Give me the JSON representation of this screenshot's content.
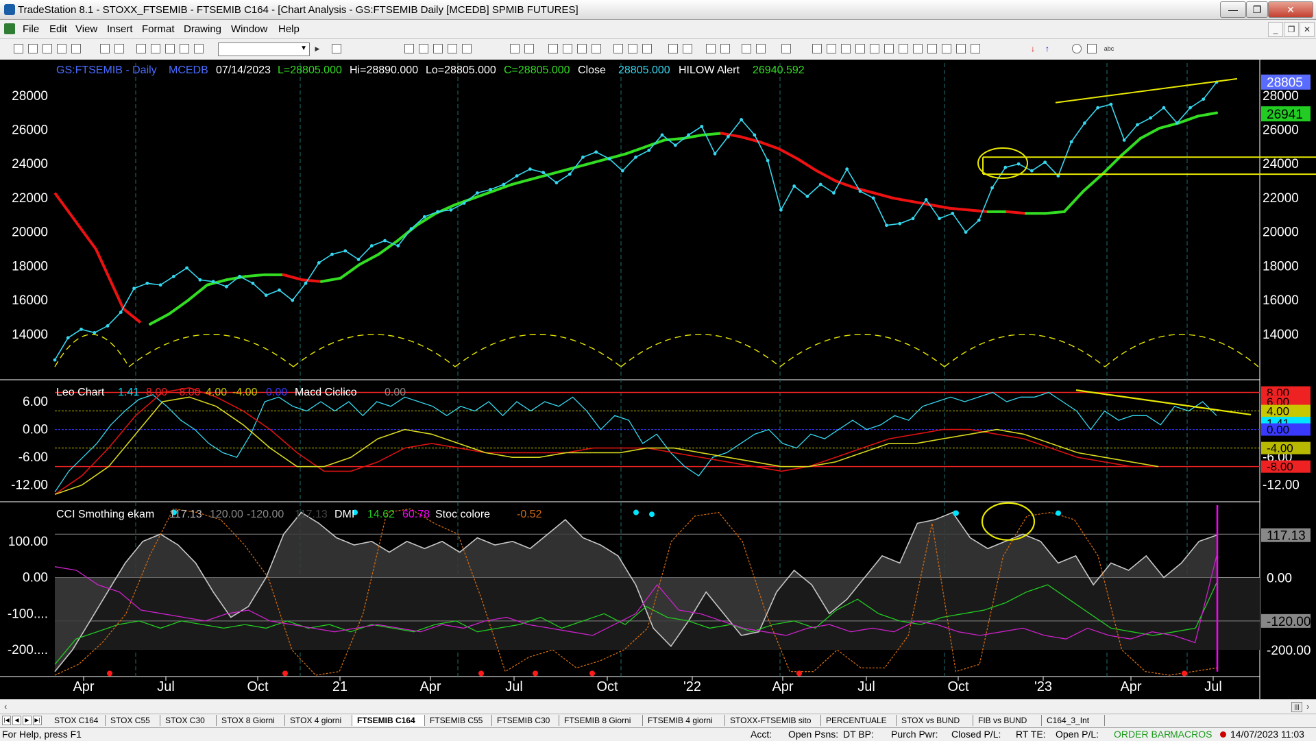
{
  "window": {
    "title": "TradeStation 8.1 - STOXX_FTSEMIB - FTSEMIB C164 - [Chart Analysis - GS:FTSEMIB  Daily  [MCEDB] SPMIB FUTURES]",
    "minimize": "—",
    "restore": "❐",
    "close": "✕"
  },
  "menu": {
    "items": [
      "File",
      "Edit",
      "View",
      "Insert",
      "Format",
      "Drawing",
      "Window",
      "Help"
    ],
    "mdi_minimize": "_",
    "mdi_restore": "❐",
    "mdi_close": "✕"
  },
  "chart_data": {
    "type": "line",
    "symbol_bar": {
      "symbol": "GS:FTSEMIB - Daily",
      "data_source": "MCEDB",
      "date": "07/14/2023",
      "last": "L=28805.000",
      "high": "Hi=28890.000",
      "low": "Lo=28805.000",
      "close_colored": "C=28805.000",
      "close_label": "Close",
      "close_value": "28805.000",
      "alert_label": "HILOW Alert",
      "alert_value": "26940.592"
    },
    "x_tick_labels": [
      "Apr",
      "Jul",
      "Oct",
      "21",
      "Apr",
      "Jul",
      "Oct",
      "'22",
      "Apr",
      "Jul",
      "Oct",
      "'23",
      "Apr",
      "Jul"
    ],
    "price_panel": {
      "ylim": [
        11500,
        29800
      ],
      "y_ticks": [
        "28000",
        "26000",
        "24000",
        "22000",
        "20000",
        "18000",
        "16000",
        "14000"
      ],
      "last_price_tag": "28805",
      "ma_tag": "26941",
      "series": [
        {
          "name": "Close",
          "color": "#36d8f0",
          "values": [
            12500,
            13800,
            14300,
            14100,
            14500,
            15300,
            16700,
            17000,
            16900,
            17400,
            17900,
            17200,
            17100,
            16800,
            17400,
            17000,
            16300,
            16600,
            16000,
            17000,
            18200,
            18700,
            18900,
            18400,
            19200,
            19500,
            19200,
            20200,
            20900,
            21200,
            21300,
            21700,
            22300,
            22500,
            22800,
            23300,
            23700,
            23500,
            22900,
            23400,
            24400,
            24700,
            24300,
            23600,
            24400,
            24800,
            25700,
            25100,
            25700,
            26200,
            24600,
            25600,
            26600,
            25700,
            24200,
            21300,
            22700,
            22100,
            22800,
            22300,
            23700,
            22400,
            22000,
            20400,
            20500,
            20800,
            21900,
            20800,
            21100,
            20000,
            20700,
            22600,
            23800,
            24000,
            23600,
            24100,
            23300,
            25300,
            26400,
            27300,
            27500,
            25400,
            26300,
            26700,
            27300,
            26400,
            27300,
            27800,
            28800
          ]
        },
        {
          "name": "Moving Average",
          "color": "#33dd22",
          "values": [
            null,
            null,
            null,
            null,
            null,
            14600,
            15200,
            16000,
            16900,
            17200,
            17400,
            17500,
            17500,
            17200,
            17100,
            17300,
            18100,
            18700,
            19500,
            20400,
            21100,
            21600,
            22000,
            22400,
            22800,
            23100,
            23400,
            23700,
            24000,
            24300,
            24600,
            25000,
            25400,
            25500,
            25700,
            25800,
            25600,
            25300,
            24900,
            24300,
            23600,
            23000,
            22600,
            22300,
            22000,
            21800,
            21600,
            21400,
            21300,
            21200,
            21200,
            21100,
            21100,
            21200,
            22400,
            23400,
            24500,
            25500,
            26100,
            26400,
            26800,
            27000
          ]
        },
        {
          "name": "Trend Line",
          "color": "#e8e800",
          "values": [
            27600,
            29000
          ]
        }
      ],
      "horizontal_lines": [
        24400,
        23400
      ],
      "cycle_line_style": "dashed yellow arcs"
    },
    "osc_panel": {
      "label": "Leo Chart",
      "values": [
        "1.41",
        "8.00",
        "-8.00",
        "4.00",
        "-4.00",
        "0.00"
      ],
      "label2": "Macd Ciclico",
      "value2": "0.00",
      "ylim": [
        -15,
        10
      ],
      "y_ticks": [
        "6.00",
        "0.00",
        "-6.00",
        "-12.00"
      ],
      "tags": [
        "8.00",
        "6.00",
        "4.00",
        "1.41",
        "0.00",
        "-4.00",
        "-8.00"
      ],
      "series": [
        {
          "name": "Leo Chart",
          "color": "#36d8f0",
          "values": [
            -13.5,
            -9,
            -6,
            -3,
            1,
            4,
            6.5,
            7.5,
            5,
            2,
            0,
            -3,
            -5,
            -6,
            -1,
            6,
            7,
            5,
            4,
            6,
            4,
            6,
            3,
            6,
            5,
            7,
            6,
            5,
            3,
            5,
            4,
            6,
            3,
            6,
            4,
            6,
            5,
            7,
            4,
            0,
            3,
            2,
            -3,
            -1,
            -5,
            -8,
            -10,
            -6,
            -5,
            -3,
            -1,
            0,
            -3,
            -4,
            -1,
            -2,
            0,
            2,
            0,
            1,
            3,
            2,
            5,
            6,
            7,
            6,
            7,
            8,
            6,
            7,
            7,
            8,
            6,
            4,
            0,
            4,
            2,
            3,
            3,
            1,
            5,
            4,
            6,
            3
          ]
        },
        {
          "name": "Smoothed Red",
          "color": "#dd1111",
          "values": [
            -14,
            -10,
            -4,
            3,
            8,
            9,
            7,
            4,
            0,
            -5,
            -9,
            -9,
            -7,
            -4,
            -3,
            -4,
            -5,
            -5,
            -5,
            -5,
            -4,
            -4,
            -4,
            -5,
            -6,
            -7,
            -8,
            -9,
            -8,
            -6,
            -4,
            -2,
            -1,
            0,
            0,
            -1,
            -2,
            -4,
            -6,
            -7,
            -8,
            -8
          ]
        },
        {
          "name": "Smoothed Yellow",
          "color": "#d8d820",
          "values": [
            -14,
            -12,
            -8,
            -1,
            6,
            7,
            5,
            1,
            -4,
            -8,
            -8,
            -6,
            -2,
            0,
            -1,
            -3,
            -5,
            -6,
            -6,
            -5,
            -5,
            -5,
            -4,
            -4,
            -5,
            -6,
            -7,
            -8,
            -8,
            -7,
            -5,
            -3,
            -3,
            -2,
            -1,
            0,
            -1,
            -3,
            -5,
            -6,
            -7,
            -8
          ]
        }
      ],
      "reference_levels": [
        8,
        4,
        0,
        -4,
        -8
      ]
    },
    "cci_panel": {
      "label": "CCI Smothing ekam",
      "values": [
        "117.13",
        "120.00",
        "-120.00",
        "117.13"
      ],
      "label2": "DMI",
      "dmi_values": [
        "14.62",
        "60.78"
      ],
      "label3": "Stoc colore",
      "stoc_value": "-0.52",
      "ylim": [
        -270,
        200
      ],
      "y_ticks": [
        "100.00",
        "0.00",
        "-100....",
        "-200...."
      ],
      "tags": [
        "117.13",
        "0.00",
        "-120.00",
        "-200.00"
      ],
      "series": [
        {
          "name": "CCI Smothing ekam",
          "color": "#c8c8c8",
          "values": [
            -260,
            -200,
            -120,
            -40,
            40,
            100,
            120,
            90,
            40,
            -40,
            -110,
            -80,
            0,
            120,
            180,
            150,
            110,
            90,
            100,
            70,
            100,
            80,
            100,
            70,
            110,
            90,
            100,
            80,
            120,
            160,
            110,
            90,
            60,
            -20,
            -140,
            -190,
            -120,
            -40,
            -100,
            -160,
            -150,
            -40,
            20,
            -20,
            -100,
            -60,
            0,
            60,
            40,
            150,
            160,
            180,
            110,
            80,
            100,
            120,
            100,
            40,
            60,
            -20,
            40,
            20,
            60,
            0,
            40,
            100,
            117
          ]
        },
        {
          "name": "DMI+",
          "color": "#22cc22",
          "values": [
            -240,
            -170,
            -150,
            -130,
            -120,
            -140,
            -120,
            -130,
            -140,
            -130,
            -140,
            -120,
            -140,
            -130,
            -150,
            -130,
            -140,
            -150,
            -130,
            -120,
            -150,
            -140,
            -130,
            -110,
            -140,
            -120,
            -100,
            -130,
            -80,
            -110,
            -120,
            -140,
            -130,
            -150,
            -130,
            -120,
            -140,
            -90,
            -60,
            -100,
            -120,
            -130,
            -110,
            -100,
            -90,
            -70,
            -40,
            -20,
            -60,
            -100,
            -140,
            -150,
            -160,
            -150,
            -140,
            -15
          ]
        },
        {
          "name": "DMI-",
          "color": "#cc22cc",
          "values": [
            30,
            20,
            -20,
            -40,
            -90,
            -100,
            -110,
            -120,
            -100,
            -90,
            -120,
            -130,
            -140,
            -150,
            -140,
            -130,
            -140,
            -150,
            -130,
            -140,
            -120,
            -110,
            -130,
            -140,
            -150,
            -160,
            -130,
            -100,
            -20,
            -90,
            -100,
            -120,
            -140,
            -150,
            -160,
            -140,
            -130,
            -150,
            -140,
            -150,
            -120,
            -130,
            -150,
            -160,
            -150,
            -140,
            -160,
            -170,
            -140,
            -160,
            -170,
            -150,
            -160,
            -180,
            60
          ]
        },
        {
          "name": "Stoc colore",
          "color": "#d06a10",
          "values": [
            -270,
            -240,
            -180,
            -100,
            60,
            190,
            180,
            160,
            90,
            0,
            -200,
            -270,
            -260,
            -100,
            180,
            190,
            150,
            120,
            -60,
            -260,
            -220,
            -200,
            -250,
            -230,
            -200,
            -140,
            100,
            170,
            180,
            100,
            -100,
            -260,
            -260,
            -200,
            -250,
            -250,
            -160,
            150,
            -260,
            -240,
            60,
            170,
            180,
            160,
            60,
            -200,
            -260,
            -270,
            -260,
            -250
          ]
        },
        {
          "name": "Magenta Signal",
          "color": "#ff00ff",
          "values": [
            -260,
            200
          ]
        }
      ],
      "reference_levels": [
        120,
        0,
        -120
      ],
      "dots_cyan_count": 7,
      "dots_red_count": 7
    },
    "annotations": [
      "yellow ellipse price consolidation",
      "yellow ellipse CCI peak",
      "yellow trend line oscillator"
    ]
  },
  "scrollbar": {
    "left_arrow": "‹",
    "right_arrow": "›",
    "handle": "|||"
  },
  "tabs": {
    "nav": [
      "|◀",
      "◀",
      "▶",
      "▶|"
    ],
    "items": [
      "STOX C164",
      "STOX C55",
      "STOX  C30",
      "STOX  8 Giorni",
      "STOX 4 giorni",
      "FTSEMIB C164",
      "FTSEMIB C55",
      "FTSEMIB C30",
      "FTSEMIB  8 Giorni",
      "FTSEMIB  4 giorni",
      "STOXX-FTSEMIB sito",
      "PERCENTUALE",
      "STOX vs BUND",
      "FIB vs BUND",
      "C164_3_Int"
    ],
    "active_index": 5
  },
  "status": {
    "help": "For Help, press F1",
    "acct": "Acct:",
    "open_psns": "Open Psns:",
    "dt_bp": "DT BP:",
    "purch_pwr": "Purch Pwr:",
    "closed_pl": "Closed P/L:",
    "rt_te": "RT TE:",
    "open_pl": "Open P/L:",
    "order_bar": "ORDER BAR",
    "macros": "MACROS",
    "datetime": "14/07/2023 11:03"
  },
  "colors": {
    "price": "#36d8f0",
    "ma_up": "#33dd22",
    "ma_down": "#ee1111",
    "cycle": "#e8e800",
    "tag_blue": "#5a6cff",
    "tag_green": "#22cc22"
  }
}
